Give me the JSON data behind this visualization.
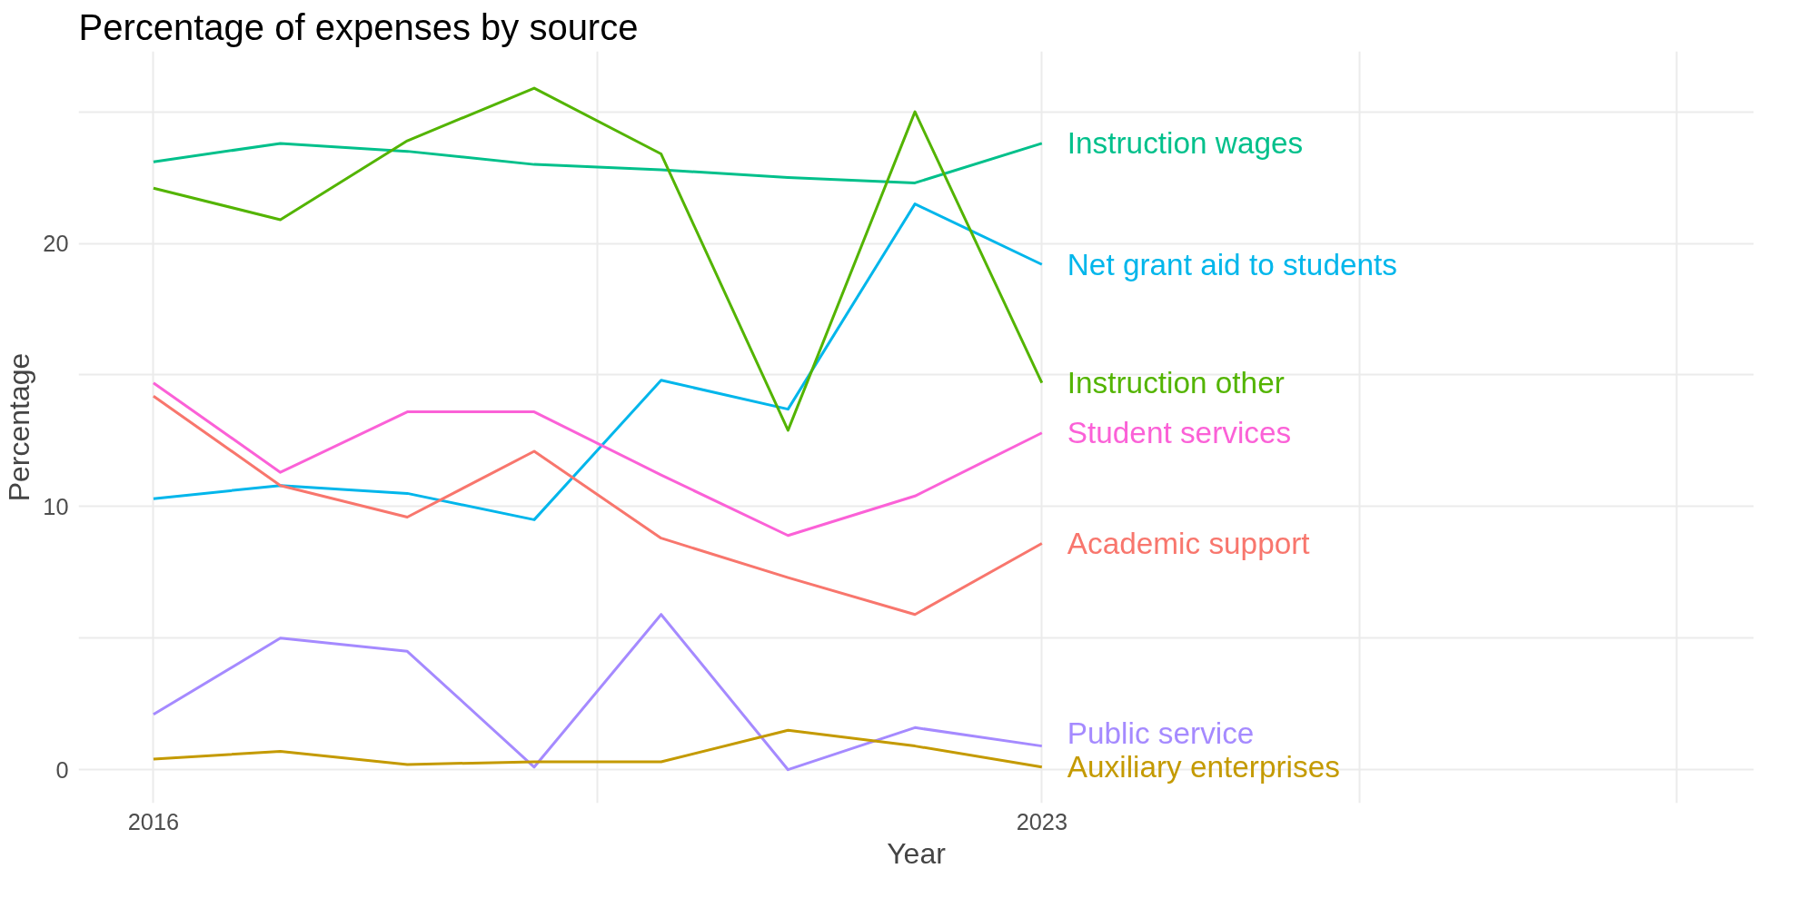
{
  "chart_data": {
    "type": "line",
    "title": "Percentage of expenses by source",
    "xlabel": "Year",
    "ylabel": "Percentage",
    "x": [
      2016,
      2017,
      2018,
      2019,
      2020,
      2021,
      2022,
      2023
    ],
    "xlim": [
      2015.41,
      2028.61
    ],
    "ylim": [
      -1.27,
      27.3
    ],
    "xticks": [
      2016,
      {
        "value": 2019.5,
        "label": null
      },
      2023,
      {
        "value": 2025.5,
        "label": null
      },
      {
        "value": 2028,
        "label": null
      }
    ],
    "yticks": [
      0,
      {
        "value": 5,
        "label": null
      },
      10,
      {
        "value": 15,
        "label": null
      },
      20,
      {
        "value": 25,
        "label": null
      }
    ],
    "grid": true,
    "marker": "none",
    "line_style": "solid",
    "series": [
      {
        "name": "Instruction wages",
        "color": "#00c08b",
        "values": [
          23.1,
          23.8,
          23.5,
          23.0,
          22.8,
          22.5,
          22.3,
          23.8
        ]
      },
      {
        "name": "Net grant aid to students",
        "color": "#00b6eb",
        "values": [
          10.3,
          10.8,
          10.5,
          9.5,
          14.8,
          13.7,
          21.5,
          19.2
        ]
      },
      {
        "name": "Instruction other",
        "color": "#53b400",
        "values": [
          22.1,
          20.9,
          23.9,
          25.9,
          23.4,
          12.9,
          25.0,
          14.7
        ]
      },
      {
        "name": "Student services",
        "color": "#fb61d7",
        "values": [
          14.7,
          11.3,
          13.6,
          13.6,
          11.2,
          8.9,
          10.4,
          12.8
        ]
      },
      {
        "name": "Academic support",
        "color": "#f8766d",
        "values": [
          14.2,
          10.8,
          9.6,
          12.1,
          8.8,
          7.3,
          5.9,
          8.6
        ]
      },
      {
        "name": "Public service",
        "color": "#a58aff",
        "values": [
          2.1,
          5.0,
          4.5,
          0.1,
          5.9,
          0.0,
          1.6,
          0.9
        ]
      },
      {
        "name": "Auxiliary enterprises",
        "color": "#c49a00",
        "values": [
          0.4,
          0.7,
          0.2,
          0.3,
          0.3,
          1.5,
          0.9,
          0.1
        ]
      }
    ]
  }
}
